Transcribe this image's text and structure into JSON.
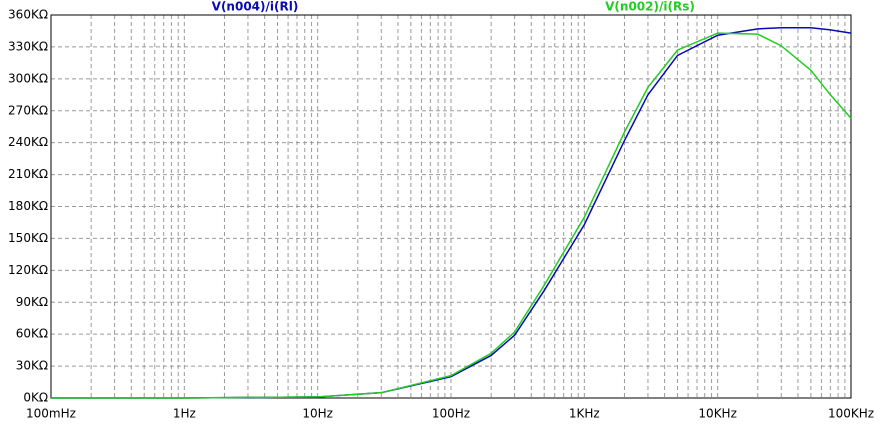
{
  "chart_data": {
    "type": "line",
    "xscale": "log",
    "grid": true,
    "x": [
      0.1,
      1,
      10,
      30,
      100,
      200,
      300,
      500,
      1000,
      2000,
      3000,
      5000,
      10000,
      20000,
      30000,
      50000,
      70000,
      100000
    ],
    "series": [
      {
        "name": "V(n004)/i(Rl)",
        "color": "#0a0ab4",
        "values": [
          0,
          0,
          1,
          5,
          20,
          40,
          59,
          101,
          163,
          242,
          285,
          322,
          341,
          347,
          348,
          348,
          346,
          343
        ]
      },
      {
        "name": "V(n002)/i(Rs)",
        "color": "#22cc22",
        "values": [
          0,
          0,
          1,
          5,
          21,
          42,
          62,
          106,
          170,
          250,
          292,
          327,
          343,
          342,
          331,
          308,
          285,
          263
        ]
      }
    ],
    "xlim": [
      0.1,
      100000
    ],
    "xticks": [
      {
        "value": 0.1,
        "label": "100mHz"
      },
      {
        "value": 1,
        "label": "1Hz"
      },
      {
        "value": 10,
        "label": "10Hz"
      },
      {
        "value": 100,
        "label": "100Hz"
      },
      {
        "value": 1000,
        "label": "1KHz"
      },
      {
        "value": 10000,
        "label": "10KHz"
      },
      {
        "value": 100000,
        "label": "100KHz"
      }
    ],
    "ylim": [
      0,
      360
    ],
    "yticks": [
      {
        "value": 0,
        "label": "0KΩ"
      },
      {
        "value": 30,
        "label": "30KΩ"
      },
      {
        "value": 60,
        "label": "60KΩ"
      },
      {
        "value": 90,
        "label": "90KΩ"
      },
      {
        "value": 120,
        "label": "120KΩ"
      },
      {
        "value": 150,
        "label": "150KΩ"
      },
      {
        "value": 180,
        "label": "180KΩ"
      },
      {
        "value": 210,
        "label": "210KΩ"
      },
      {
        "value": 240,
        "label": "240KΩ"
      },
      {
        "value": 270,
        "label": "270KΩ"
      },
      {
        "value": 300,
        "label": "300KΩ"
      },
      {
        "value": 330,
        "label": "330KΩ"
      },
      {
        "value": 360,
        "label": "360KΩ"
      }
    ]
  }
}
